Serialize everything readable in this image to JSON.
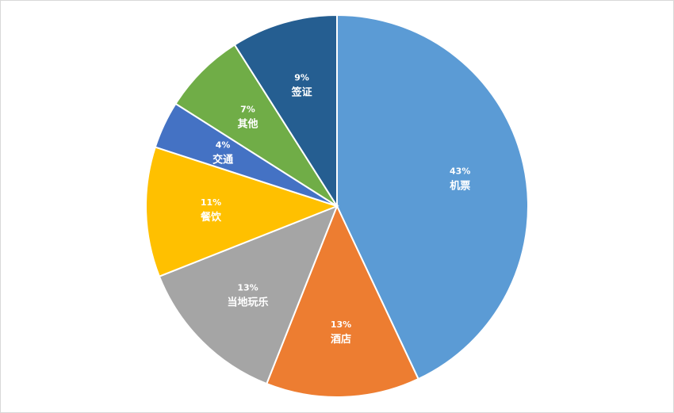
{
  "chart_data": {
    "type": "pie",
    "title": "",
    "start_angle_deg": 0,
    "direction": "clockwise",
    "slices": [
      {
        "label": "机票",
        "value": 43,
        "pct_text": "43%",
        "color": "#5b9bd5"
      },
      {
        "label": "酒店",
        "value": 13,
        "pct_text": "13%",
        "color": "#ed7d31"
      },
      {
        "label": "当地玩乐",
        "value": 13,
        "pct_text": "13%",
        "color": "#a5a5a5"
      },
      {
        "label": "餐饮",
        "value": 11,
        "pct_text": "11%",
        "color": "#ffc000"
      },
      {
        "label": "交通",
        "value": 4,
        "pct_text": "4%",
        "color": "#4472c4"
      },
      {
        "label": "其他",
        "value": 7,
        "pct_text": "7%",
        "color": "#70ad47"
      },
      {
        "label": "签证",
        "value": 9,
        "pct_text": "9%",
        "color": "#255e91"
      }
    ],
    "legend": "none",
    "data_labels": "inside"
  }
}
